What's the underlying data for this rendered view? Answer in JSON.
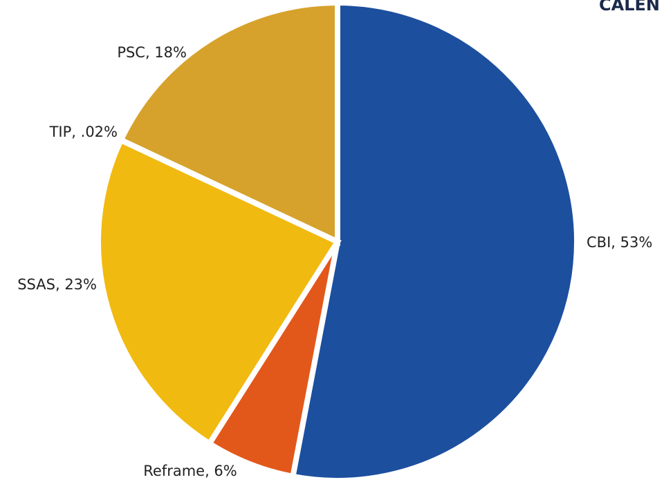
{
  "chart_data": {
    "type": "pie",
    "title": "CALEN",
    "values": [
      53,
      6,
      23,
      0.02,
      18
    ],
    "value_labels": [
      "CBI, 53%",
      "Reframe, 6%",
      "SSAS, 23%",
      "TIP, .02%",
      "PSC, 18%"
    ],
    "colors": [
      "#1c4f9e",
      "#e2581b",
      "#f1ba10",
      "#d9a526",
      "#d6a22c"
    ]
  }
}
